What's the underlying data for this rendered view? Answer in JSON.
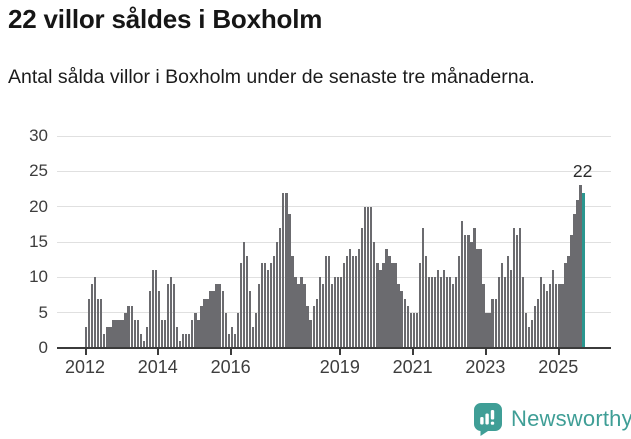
{
  "header": {
    "title": "22 villor såldes i Boxholm",
    "subtitle": "Antal sålda villor i Boxholm under de senaste tre månaderna."
  },
  "chart_data": {
    "type": "bar",
    "title": "22 villor såldes i Boxholm",
    "subtitle": "Antal sålda villor i Boxholm under de senaste tre månaderna.",
    "xlabel": "",
    "ylabel": "",
    "start_month": "2012-01",
    "ylim": [
      0,
      30
    ],
    "grid": true,
    "y_ticks": [
      0,
      5,
      10,
      15,
      20,
      25,
      30
    ],
    "x_ticks": [
      {
        "label": "2012",
        "month_index": 0
      },
      {
        "label": "2014",
        "month_index": 24
      },
      {
        "label": "2016",
        "month_index": 48
      },
      {
        "label": "2019",
        "month_index": 84
      },
      {
        "label": "2021",
        "month_index": 108
      },
      {
        "label": "2023",
        "month_index": 132
      },
      {
        "label": "2025",
        "month_index": 156
      }
    ],
    "values": [
      3,
      7,
      9,
      10,
      7,
      7,
      2,
      3,
      3,
      4,
      4,
      4,
      4,
      5,
      6,
      6,
      4,
      4,
      2,
      1,
      3,
      8,
      11,
      11,
      8,
      4,
      4,
      9,
      10,
      9,
      3,
      1,
      2,
      2,
      2,
      4,
      5,
      4,
      6,
      7,
      7,
      8,
      8,
      9,
      9,
      8,
      5,
      2,
      3,
      2,
      5,
      12,
      15,
      13,
      8,
      3,
      5,
      9,
      12,
      12,
      11,
      12,
      13,
      15,
      17,
      22,
      22,
      19,
      13,
      10,
      9,
      10,
      9,
      6,
      4,
      6,
      7,
      10,
      9,
      13,
      13,
      9,
      10,
      10,
      10,
      12,
      13,
      14,
      13,
      13,
      14,
      17,
      20,
      20,
      20,
      15,
      12,
      11,
      12,
      14,
      13,
      12,
      12,
      9,
      8,
      7,
      6,
      5,
      5,
      5,
      12,
      17,
      13,
      10,
      10,
      10,
      11,
      10,
      11,
      10,
      10,
      9,
      10,
      13,
      18,
      16,
      16,
      15,
      17,
      14,
      14,
      9,
      5,
      5,
      7,
      7,
      10,
      12,
      10,
      13,
      11,
      17,
      16,
      17,
      10,
      5,
      3,
      4,
      6,
      7,
      10,
      9,
      8,
      9,
      11,
      9,
      9,
      9,
      12,
      13,
      16,
      19,
      21,
      23,
      22
    ],
    "highlighted_last_value": 22,
    "annotation": {
      "text": "22"
    },
    "legend": null,
    "colors": {
      "bar": "#6b6b6f",
      "highlight": "#2a968f",
      "gridline": "#e0e0e0",
      "axis": "#3b3b3b"
    }
  },
  "footer": {
    "brand": "Newsworthy",
    "logo_icon": "bar-chart-speech-bubble-icon",
    "brand_color": "#3f9e96"
  }
}
